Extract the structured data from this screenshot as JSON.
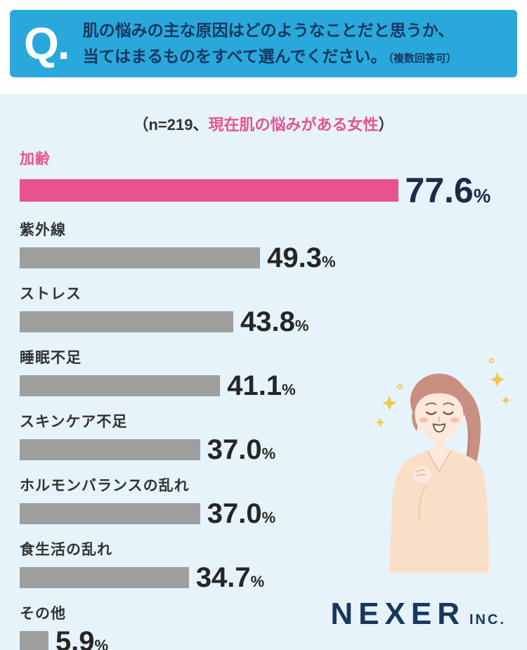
{
  "header": {
    "q_label": "Q.",
    "line1": "肌の悩みの主な原因はどのようなことだと思うか、",
    "line2": "当てはまるものをすべて選んでください。",
    "note": "（複数回答可）"
  },
  "subtitle": {
    "prefix": "（n=219、",
    "highlight": "現在肌の悩みがある女性",
    "suffix": "）"
  },
  "chart_data": {
    "type": "bar",
    "orientation": "horizontal",
    "title": "肌の悩みの主な原因（複数回答可）",
    "categories": [
      "加齢",
      "紫外線",
      "ストレス",
      "睡眠不足",
      "スキンケア不足",
      "ホルモンバランスの乱れ",
      "食生活の乱れ",
      "その他"
    ],
    "values": [
      77.6,
      49.3,
      43.8,
      41.1,
      37.0,
      37.0,
      34.7,
      5.9
    ],
    "display_values": [
      "77.6",
      "49.3",
      "43.8",
      "41.1",
      "37.0",
      "37.0",
      "34.7",
      "5.9"
    ],
    "unit": "%",
    "highlight_index": 0,
    "xlim": [
      0,
      100
    ],
    "legend": false,
    "grid": false
  },
  "theme": {
    "banner_blue": "#29A8DC",
    "navy": "#17375E",
    "page_bg": "#E6F3FA",
    "pink": "#E8538F",
    "bar_gray": "#9E9E9E"
  },
  "logo": {
    "brand": "NEXER",
    "suffix": "INC."
  },
  "illustration": {
    "name": "smiling-woman-with-sparkles"
  }
}
